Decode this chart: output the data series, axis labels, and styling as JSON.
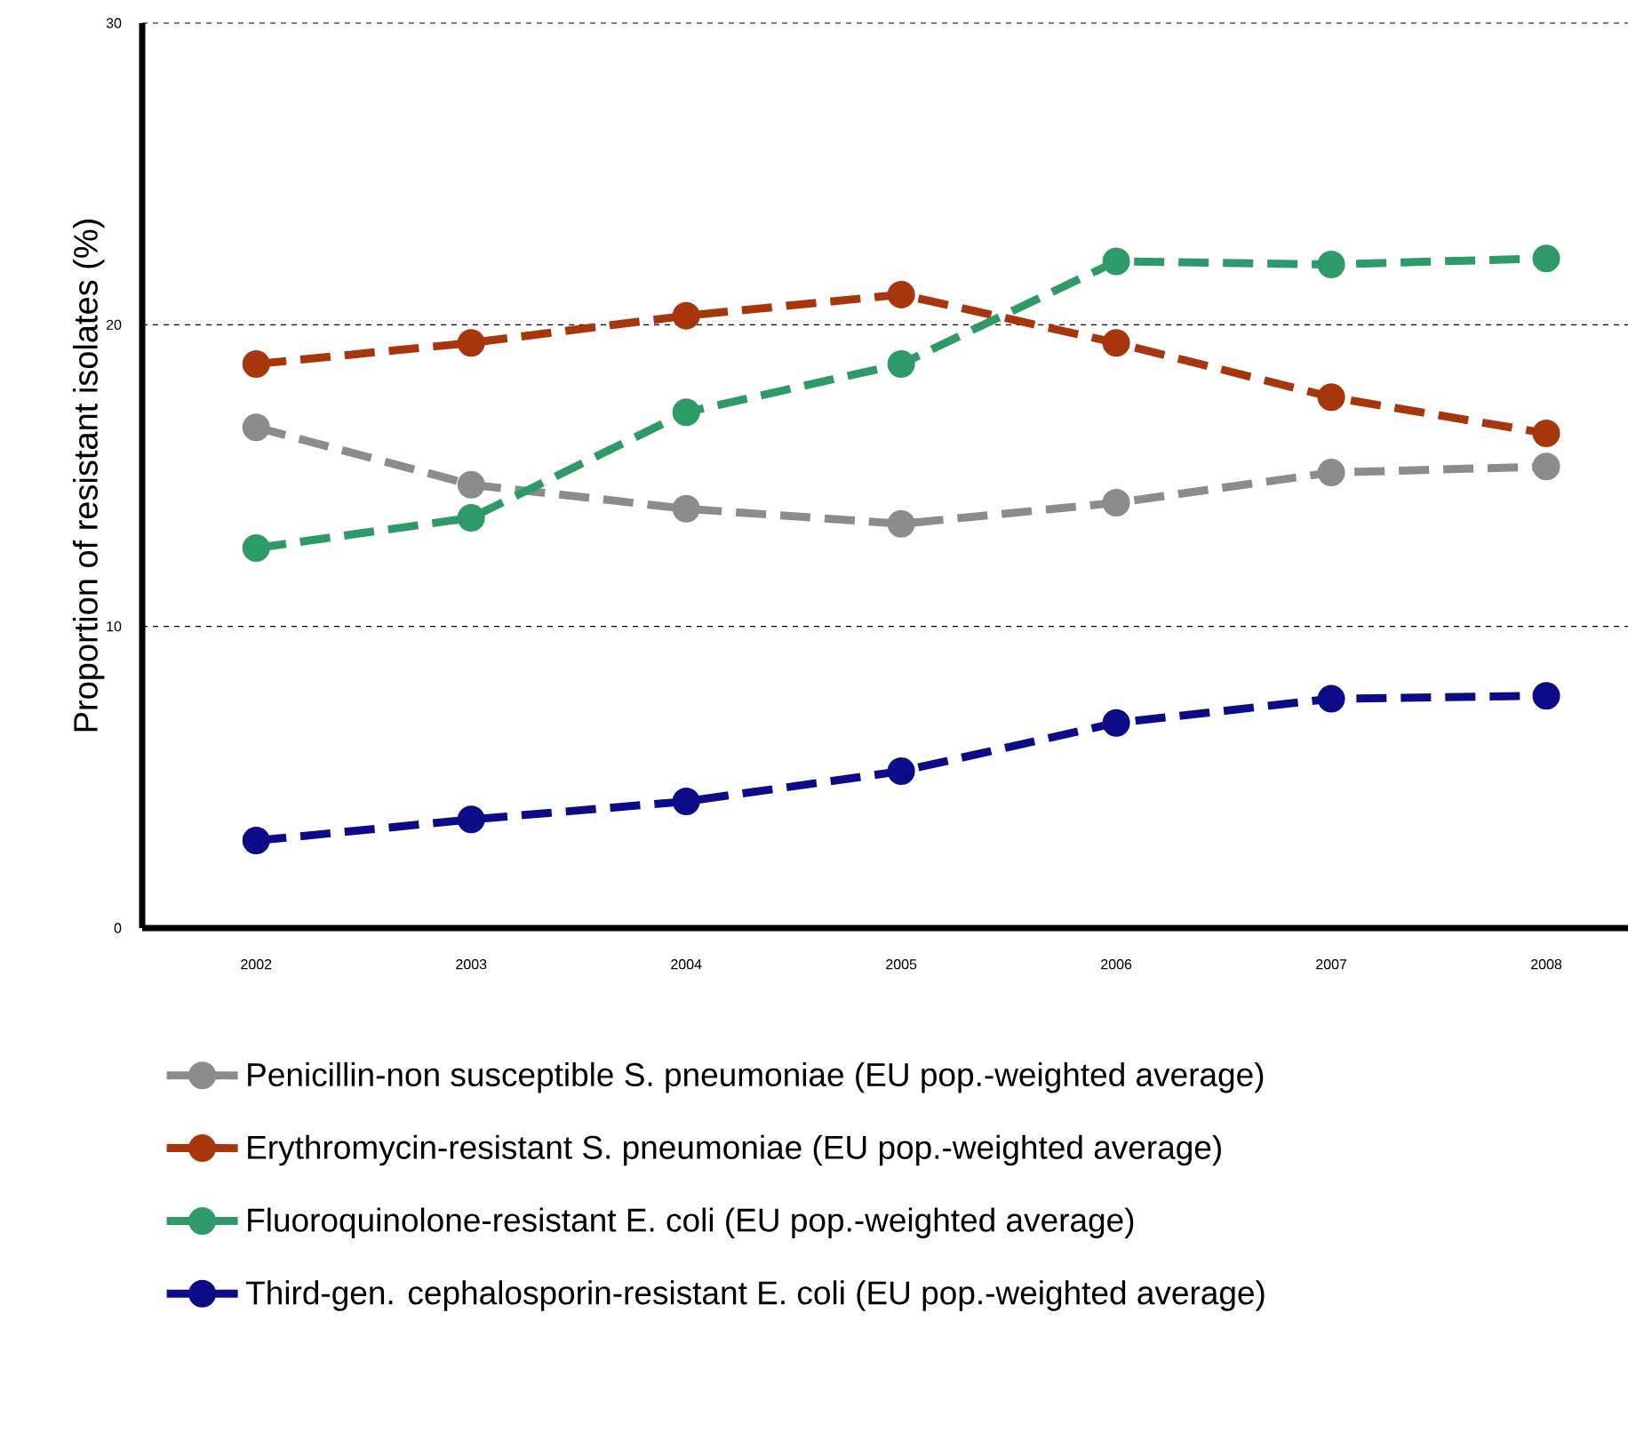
{
  "chart_data": {
    "type": "line",
    "ylabel": "Proportion of resistant isolates (%)",
    "categories": [
      "2002",
      "2003",
      "2004",
      "2005",
      "2006",
      "2007",
      "2008"
    ],
    "series": [
      {
        "name": "Penicillin-non susceptible S. pneumoniae (EU pop.-weighted average)",
        "color": "#8c8c8c",
        "values": [
          16.6,
          14.7,
          13.9,
          13.4,
          14.1,
          15.1,
          15.3
        ]
      },
      {
        "name": "Erythromycin-resistant S. pneumoniae (EU pop.-weighted average)",
        "color": "#a8360c",
        "values": [
          18.7,
          19.4,
          20.3,
          21.0,
          19.4,
          17.6,
          16.4
        ]
      },
      {
        "name": "Fluoroquinolone-resistant E. coli (EU pop.-weighted average)",
        "color": "#2e9a68",
        "values": [
          12.6,
          13.6,
          17.1,
          18.7,
          22.1,
          22.0,
          22.2
        ]
      },
      {
        "name": "Third-gen. cephalosporin-resistant E. coli (EU pop.-weighted average)",
        "color": "#0c0c88",
        "values": [
          2.9,
          3.6,
          4.2,
          5.2,
          6.8,
          7.6,
          7.7
        ]
      }
    ],
    "ylim": [
      0,
      30
    ],
    "yticks": [
      0,
      10,
      20,
      30
    ],
    "grid": "y",
    "legend": "bottom",
    "marker": "circle",
    "line_style": "dashed"
  }
}
